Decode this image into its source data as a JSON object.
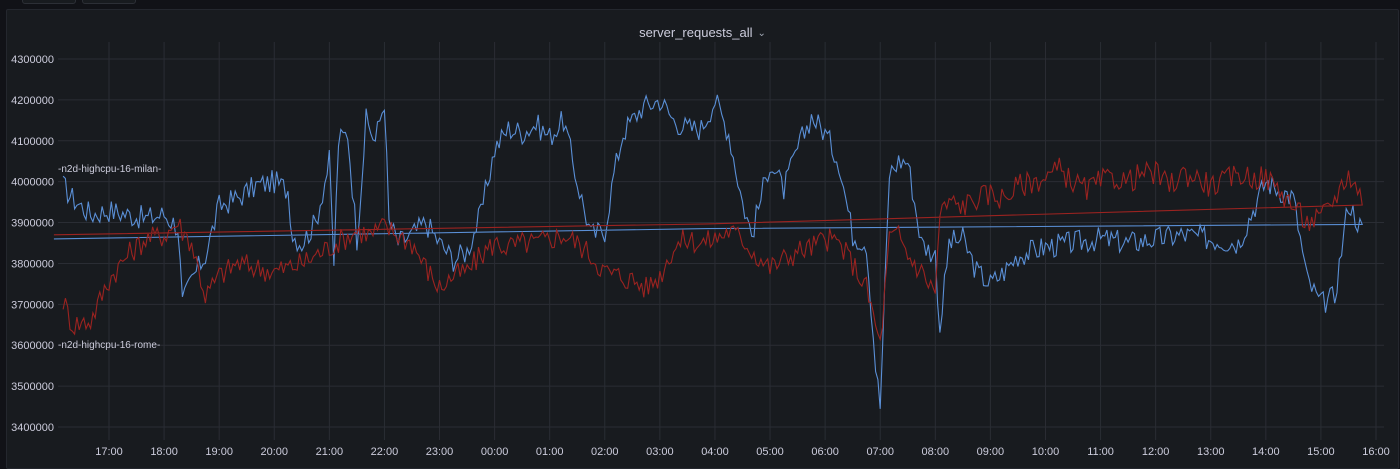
{
  "panel": {
    "title": "server_requests_all"
  },
  "colors": {
    "background": "#111217",
    "panel": "#181b1f",
    "grid": "#2a2d34",
    "blue": "#5a8fd6",
    "red": "#9b2320"
  },
  "icons": {
    "title_menu": "chevron-down-icon"
  },
  "chart_data": {
    "type": "line",
    "ylim": [
      3350000,
      4325000
    ],
    "y_ticks": [
      "3400000",
      "3500000",
      "3600000",
      "3700000",
      "3800000",
      "3900000",
      "4000000",
      "4100000",
      "4200000",
      "4300000"
    ],
    "y_tick_values": [
      3400000,
      3500000,
      3600000,
      3700000,
      3800000,
      3900000,
      4000000,
      4100000,
      4200000,
      4300000
    ],
    "x_ticks": [
      "17:00",
      "18:00",
      "19:00",
      "20:00",
      "21:00",
      "22:00",
      "23:00",
      "00:00",
      "01:00",
      "02:00",
      "03:00",
      "04:00",
      "05:00",
      "06:00",
      "07:00",
      "08:00",
      "09:00",
      "10:00",
      "11:00",
      "12:00",
      "13:00",
      "14:00",
      "15:00",
      "16:00"
    ],
    "x_start_hour": 16.15,
    "x_end_hour": 40.0,
    "grid": true,
    "series": [
      {
        "name": "n2d-highcpu-16-milan",
        "color": "#5a8fd6",
        "label": "-n2d-highcpu-16-milan-",
        "x": [
          "16:10",
          "16:20",
          "16:40",
          "17:00",
          "17:20",
          "17:40",
          "18:00",
          "18:15",
          "18:20",
          "18:30",
          "18:45",
          "19:00",
          "19:20",
          "19:40",
          "20:00",
          "20:15",
          "20:20",
          "20:30",
          "20:45",
          "21:00",
          "21:05",
          "21:10",
          "21:20",
          "21:30",
          "21:40",
          "21:50",
          "22:00",
          "22:05",
          "22:15",
          "22:30",
          "22:45",
          "23:00",
          "23:15",
          "23:30",
          "23:45",
          "00:00",
          "00:15",
          "00:30",
          "00:45",
          "01:00",
          "01:15",
          "01:30",
          "01:45",
          "02:00",
          "02:10",
          "02:20",
          "02:40",
          "03:00",
          "03:15",
          "03:30",
          "03:45",
          "04:00",
          "04:15",
          "04:30",
          "04:40",
          "05:00",
          "05:15",
          "05:30",
          "05:45",
          "06:00",
          "06:15",
          "06:30",
          "06:45",
          "06:55",
          "07:00",
          "07:10",
          "07:20",
          "07:30",
          "07:45",
          "08:00",
          "08:05",
          "08:15",
          "08:30",
          "08:45",
          "09:00",
          "09:15",
          "09:30",
          "10:00",
          "10:30",
          "11:00",
          "11:30",
          "12:00",
          "12:30",
          "13:00",
          "13:30",
          "14:00",
          "14:30",
          "14:45",
          "15:00",
          "15:15",
          "15:30",
          "15:45",
          "16:00"
        ],
        "y": [
          3990000,
          3960000,
          3920000,
          3930000,
          3920000,
          3910000,
          3920000,
          3890000,
          3700000,
          3760000,
          3820000,
          3940000,
          3960000,
          3990000,
          4000000,
          3980000,
          3870000,
          3850000,
          3900000,
          4050000,
          3800000,
          4100000,
          4120000,
          3860000,
          4150000,
          4100000,
          4200000,
          3900000,
          3850000,
          3870000,
          3900000,
          3850000,
          3810000,
          3830000,
          3920000,
          4080000,
          4130000,
          4120000,
          4140000,
          4110000,
          4150000,
          4000000,
          3870000,
          3880000,
          4020000,
          4120000,
          4180000,
          4200000,
          4150000,
          4130000,
          4130000,
          4200000,
          4120000,
          3950000,
          3870000,
          4050000,
          3980000,
          4080000,
          4160000,
          4120000,
          4050000,
          3870000,
          3850000,
          3550000,
          3450000,
          4020000,
          4050000,
          4050000,
          3850000,
          3820000,
          3640000,
          3850000,
          3860000,
          3780000,
          3750000,
          3780000,
          3820000,
          3840000,
          3850000,
          3860000,
          3850000,
          3860000,
          3870000,
          3860000,
          3850000,
          4000000,
          3960000,
          3760000,
          3700000,
          3720000,
          3950000,
          3880000,
          3860000
        ]
      },
      {
        "name": "n2d-highcpu-16-rome",
        "color": "#9b2320",
        "label": "-n2d-highcpu-16-rome-",
        "x": [
          "16:10",
          "16:20",
          "16:40",
          "17:00",
          "17:20",
          "17:40",
          "18:00",
          "18:15",
          "18:20",
          "18:30",
          "18:45",
          "19:00",
          "19:20",
          "19:40",
          "20:00",
          "20:15",
          "20:30",
          "20:45",
          "21:00",
          "21:15",
          "21:30",
          "21:45",
          "22:00",
          "22:15",
          "22:30",
          "22:45",
          "23:00",
          "23:15",
          "23:30",
          "23:45",
          "00:00",
          "00:15",
          "00:30",
          "00:45",
          "01:00",
          "01:15",
          "01:30",
          "01:45",
          "02:00",
          "02:15",
          "02:30",
          "02:45",
          "03:00",
          "03:15",
          "03:30",
          "03:45",
          "04:00",
          "04:15",
          "04:30",
          "04:45",
          "05:00",
          "05:15",
          "05:30",
          "05:45",
          "06:00",
          "06:15",
          "06:30",
          "06:45",
          "06:55",
          "07:00",
          "07:10",
          "07:20",
          "07:30",
          "07:45",
          "08:00",
          "08:05",
          "08:15",
          "08:30",
          "08:45",
          "09:00",
          "09:15",
          "09:30",
          "09:45",
          "10:00",
          "10:15",
          "10:30",
          "10:45",
          "11:00",
          "11:15",
          "11:30",
          "11:45",
          "12:00",
          "12:15",
          "12:30",
          "12:45",
          "13:00",
          "13:15",
          "13:30",
          "13:45",
          "14:00",
          "14:15",
          "14:30",
          "14:45",
          "15:00",
          "15:15",
          "15:30",
          "15:45",
          "16:00"
        ],
        "y": [
          3710000,
          3650000,
          3660000,
          3760000,
          3820000,
          3860000,
          3870000,
          3900000,
          3880000,
          3850000,
          3720000,
          3770000,
          3800000,
          3790000,
          3780000,
          3790000,
          3800000,
          3820000,
          3840000,
          3860000,
          3880000,
          3870000,
          3890000,
          3870000,
          3850000,
          3790000,
          3740000,
          3770000,
          3780000,
          3820000,
          3850000,
          3840000,
          3850000,
          3850000,
          3860000,
          3870000,
          3850000,
          3820000,
          3780000,
          3770000,
          3760000,
          3740000,
          3770000,
          3840000,
          3860000,
          3850000,
          3860000,
          3880000,
          3860000,
          3820000,
          3790000,
          3810000,
          3830000,
          3840000,
          3860000,
          3850000,
          3800000,
          3740000,
          3650000,
          3600000,
          3860000,
          3870000,
          3820000,
          3780000,
          3730000,
          3920000,
          3950000,
          3940000,
          3960000,
          3970000,
          3960000,
          3990000,
          4000000,
          4010000,
          4030000,
          4000000,
          3980000,
          4000000,
          4010000,
          4000000,
          4020000,
          4020000,
          3990000,
          4020000,
          4010000,
          3990000,
          4000000,
          4020000,
          4010000,
          4010000,
          3980000,
          3940000,
          3900000,
          3910000,
          3960000,
          4020000,
          3960000,
          3870000
        ]
      }
    ]
  }
}
